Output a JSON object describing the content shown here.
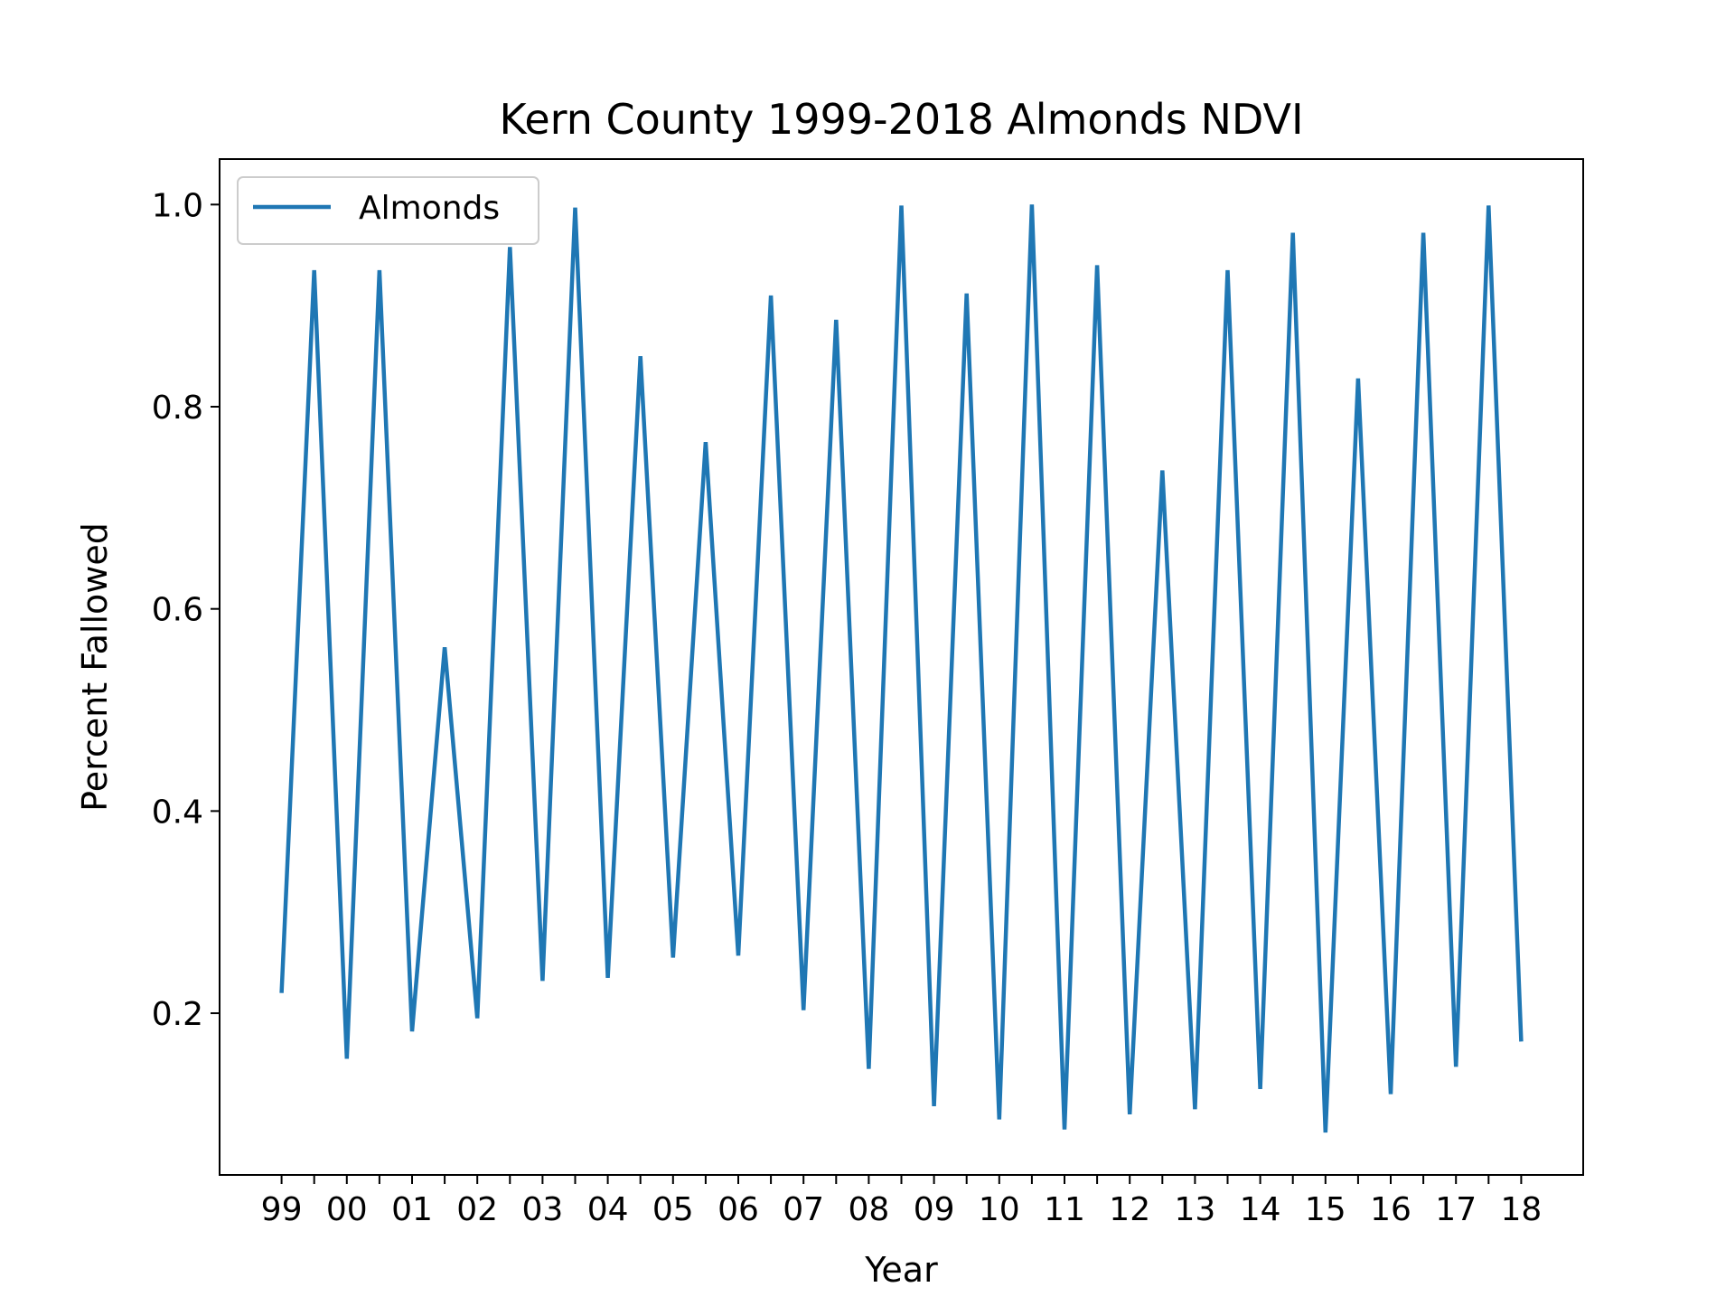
{
  "chart_data": {
    "type": "line",
    "title": "Kern County 1999-2018 Almonds NDVI",
    "xlabel": "Year",
    "ylabel": "Percent Fallowed",
    "xtick_labels": [
      "99",
      "00",
      "01",
      "02",
      "03",
      "04",
      "05",
      "06",
      "07",
      "08",
      "09",
      "10",
      "11",
      "12",
      "13",
      "14",
      "15",
      "16",
      "17",
      "18"
    ],
    "ytick_labels": [
      "0.2",
      "0.4",
      "0.6",
      "0.8",
      "1.0"
    ],
    "yticks": [
      0.2,
      0.4,
      0.6,
      0.8,
      1.0
    ],
    "ylim": [
      0.04,
      1.045
    ],
    "xlim": [
      1998.05,
      2018.95
    ],
    "grid": false,
    "legend_position": "upper-left",
    "color": "#1f77b4",
    "series": [
      {
        "name": "Almonds",
        "x": [
          1999,
          1999.5,
          2000,
          2000.5,
          2001,
          2001.5,
          2002,
          2002.5,
          2003,
          2003.5,
          2004,
          2004.5,
          2005,
          2005.5,
          2006,
          2006.5,
          2007,
          2007.5,
          2008,
          2008.5,
          2009,
          2009.5,
          2010,
          2010.5,
          2011,
          2011.5,
          2012,
          2012.5,
          2013,
          2013.5,
          2014,
          2014.5,
          2015,
          2015.5,
          2016,
          2016.5,
          2017,
          2017.5,
          2018
        ],
        "values": [
          0.22,
          0.935,
          0.155,
          0.935,
          0.182,
          0.562,
          0.195,
          0.958,
          0.232,
          0.997,
          0.235,
          0.85,
          0.255,
          0.765,
          0.257,
          0.91,
          0.203,
          0.886,
          0.145,
          0.999,
          0.108,
          0.912,
          0.095,
          1.0,
          0.085,
          0.94,
          0.1,
          0.737,
          0.105,
          0.935,
          0.125,
          0.972,
          0.082,
          0.828,
          0.12,
          0.972,
          0.147,
          0.999,
          0.172
        ]
      }
    ]
  }
}
